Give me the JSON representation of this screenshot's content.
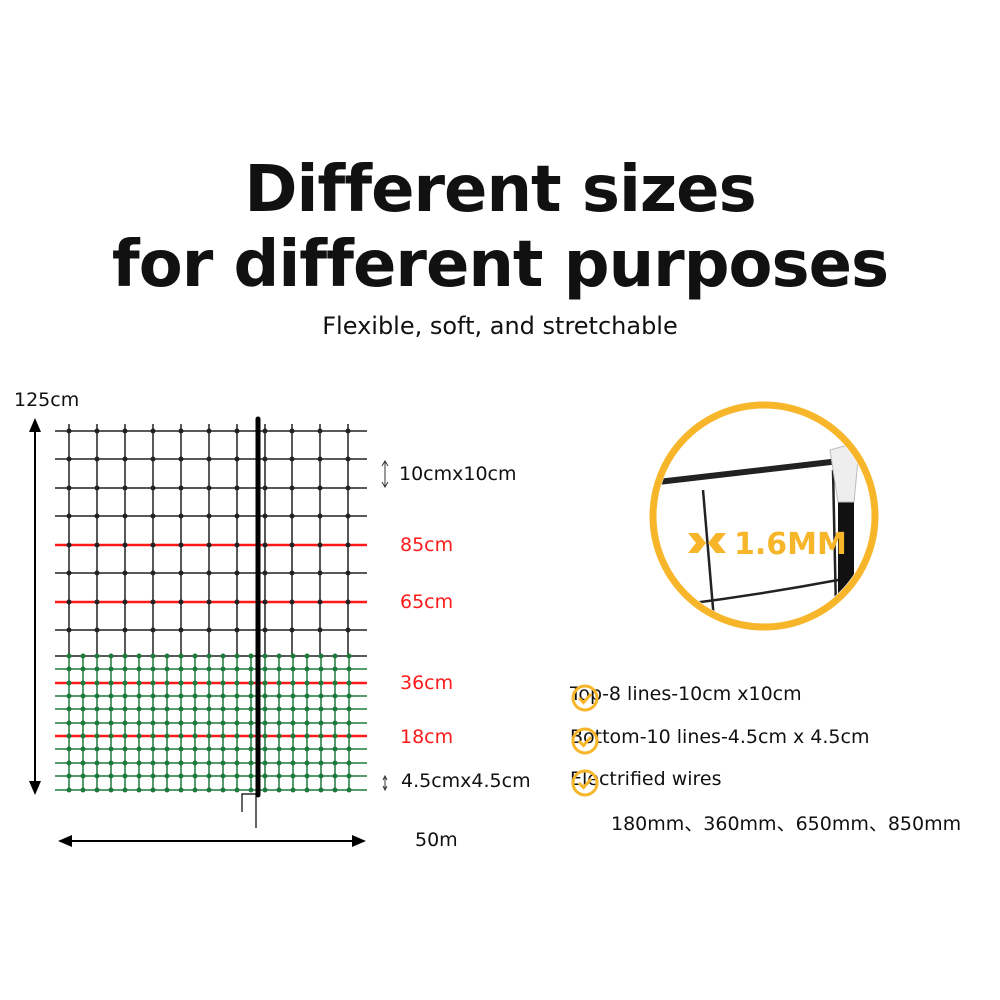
{
  "title_line1": "Different sizes",
  "title_line2": "for different purposes",
  "subtitle": "Flexible, soft, and stretchable",
  "diagram": {
    "height_label": "125cm",
    "width_label": "50m",
    "top_mesh_label": "10cmx10cm",
    "bottom_mesh_label": "4.5cmx4.5cm",
    "wire_labels": [
      "85cm",
      "65cm",
      "36cm",
      "18cm"
    ],
    "colors": {
      "top_mesh": "#222222",
      "bottom_mesh": "#1e7a3c",
      "electrified": "#ff1a1a"
    }
  },
  "zoom_callout": {
    "label": "1.6MM",
    "ring_color": "#f7b62a"
  },
  "features": [
    {
      "icon": "check-circle-icon",
      "text": "Top-8 lines-10cm x10cm"
    },
    {
      "icon": "check-circle-icon",
      "text": "Bottom-10 lines-4.5cm x 4.5cm"
    },
    {
      "icon": "check-circle-icon",
      "text": "Electrified wires"
    }
  ],
  "wire_heights": "180mm、360mm、650mm、850mm"
}
